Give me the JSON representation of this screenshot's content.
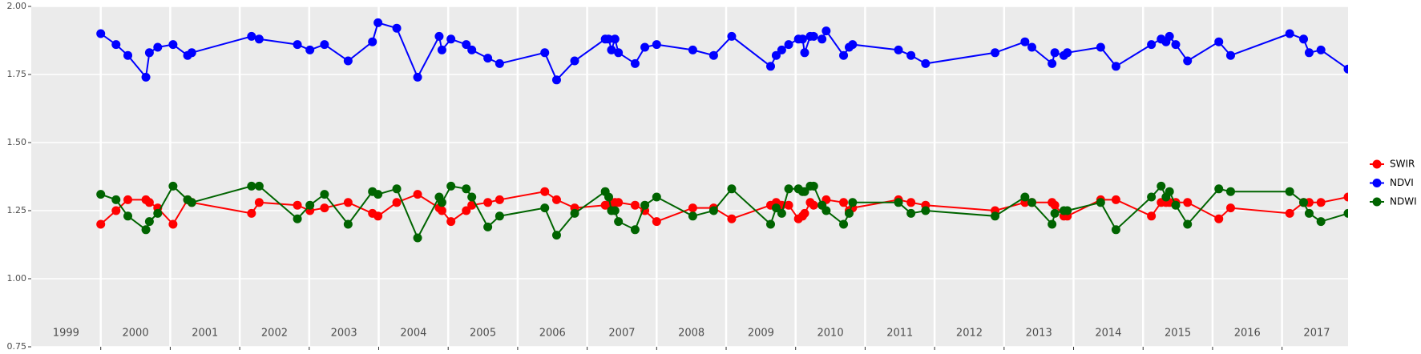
{
  "chart_data": {
    "type": "line",
    "x": [
      2000.0,
      2000.22,
      2000.39,
      2000.65,
      2000.7,
      2000.82,
      2001.04,
      2001.25,
      2001.31,
      2002.17,
      2002.28,
      2002.83,
      2003.01,
      2003.22,
      2003.56,
      2003.91,
      2003.99,
      2004.26,
      2004.56,
      2004.87,
      2004.91,
      2005.04,
      2005.26,
      2005.34,
      2005.57,
      2005.74,
      2006.39,
      2006.56,
      2006.82,
      2007.26,
      2007.31,
      2007.35,
      2007.4,
      2007.45,
      2007.69,
      2007.83,
      2008.0,
      2008.52,
      2008.82,
      2009.08,
      2009.64,
      2009.72,
      2009.8,
      2009.9,
      2010.04,
      2010.1,
      2010.13,
      2010.21,
      2010.26,
      2010.38,
      2010.44,
      2010.69,
      2010.77,
      2010.82,
      2011.48,
      2011.66,
      2011.87,
      2012.87,
      2013.3,
      2013.4,
      2013.69,
      2013.73,
      2013.86,
      2013.91,
      2014.39,
      2014.61,
      2015.12,
      2015.26,
      2015.33,
      2015.38,
      2015.47,
      2015.64,
      2016.09,
      2016.26,
      2017.11,
      2017.31,
      2017.39,
      2017.56,
      2017.95
    ],
    "series": [
      {
        "name": "SWIR",
        "color": "#ff0000",
        "values": [
          1.2,
          1.25,
          1.29,
          1.29,
          1.28,
          1.26,
          1.2,
          1.29,
          1.28,
          1.24,
          1.28,
          1.27,
          1.25,
          1.26,
          1.28,
          1.24,
          1.23,
          1.28,
          1.31,
          1.26,
          1.25,
          1.21,
          1.25,
          1.27,
          1.28,
          1.29,
          1.32,
          1.29,
          1.26,
          1.27,
          1.27,
          1.28,
          1.28,
          1.28,
          1.27,
          1.25,
          1.21,
          1.26,
          1.26,
          1.22,
          1.27,
          1.28,
          1.27,
          1.27,
          1.22,
          1.23,
          1.24,
          1.28,
          1.27,
          1.27,
          1.29,
          1.28,
          1.25,
          1.26,
          1.29,
          1.28,
          1.27,
          1.25,
          1.28,
          1.28,
          1.28,
          1.27,
          1.23,
          1.23,
          1.29,
          1.29,
          1.23,
          1.28,
          1.28,
          1.28,
          1.28,
          1.28,
          1.22,
          1.26,
          1.24,
          1.28,
          1.28,
          1.28,
          1.3
        ]
      },
      {
        "name": "NDVI",
        "color": "#0000ff",
        "values": [
          1.9,
          1.86,
          1.82,
          1.74,
          1.83,
          1.85,
          1.86,
          1.82,
          1.83,
          1.89,
          1.88,
          1.86,
          1.84,
          1.86,
          1.8,
          1.87,
          1.94,
          1.92,
          1.74,
          1.89,
          1.84,
          1.88,
          1.86,
          1.84,
          1.81,
          1.79,
          1.83,
          1.73,
          1.8,
          1.88,
          1.88,
          1.84,
          1.88,
          1.83,
          1.79,
          1.85,
          1.86,
          1.84,
          1.82,
          1.89,
          1.78,
          1.82,
          1.84,
          1.86,
          1.88,
          1.88,
          1.83,
          1.89,
          1.89,
          1.88,
          1.91,
          1.82,
          1.85,
          1.86,
          1.84,
          1.82,
          1.79,
          1.83,
          1.87,
          1.85,
          1.79,
          1.83,
          1.82,
          1.83,
          1.85,
          1.78,
          1.86,
          1.88,
          1.87,
          1.89,
          1.86,
          1.8,
          1.87,
          1.82,
          1.9,
          1.88,
          1.83,
          1.84,
          1.77
        ]
      },
      {
        "name": "NDWI",
        "color": "#006400",
        "values": [
          1.31,
          1.29,
          1.23,
          1.18,
          1.21,
          1.24,
          1.34,
          1.29,
          1.28,
          1.34,
          1.34,
          1.22,
          1.27,
          1.31,
          1.2,
          1.32,
          1.31,
          1.33,
          1.15,
          1.3,
          1.28,
          1.34,
          1.33,
          1.3,
          1.19,
          1.23,
          1.26,
          1.16,
          1.24,
          1.32,
          1.3,
          1.25,
          1.25,
          1.21,
          1.18,
          1.27,
          1.3,
          1.23,
          1.25,
          1.33,
          1.2,
          1.26,
          1.24,
          1.33,
          1.33,
          1.32,
          1.32,
          1.34,
          1.34,
          1.27,
          1.25,
          1.2,
          1.24,
          1.28,
          1.28,
          1.24,
          1.25,
          1.23,
          1.3,
          1.28,
          1.2,
          1.24,
          1.25,
          1.25,
          1.28,
          1.18,
          1.3,
          1.34,
          1.3,
          1.32,
          1.27,
          1.2,
          1.33,
          1.32,
          1.32,
          1.28,
          1.24,
          1.21,
          1.24
        ]
      }
    ],
    "xlim": [
      1999,
      2017.95
    ],
    "xticks": [
      2000,
      2001,
      2002,
      2003,
      2004,
      2005,
      2006,
      2007,
      2008,
      2009,
      2010,
      2011,
      2012,
      2013,
      2014,
      2015,
      2016,
      2017
    ],
    "year_labels": [
      1999,
      2000,
      2001,
      2002,
      2003,
      2004,
      2005,
      2006,
      2007,
      2008,
      2009,
      2010,
      2011,
      2012,
      2013,
      2014,
      2015,
      2016,
      2017
    ],
    "ylim": [
      0.75,
      2.0
    ],
    "yticks": [
      {
        "value": 0.75,
        "label": "0.75"
      },
      {
        "value": 1.0,
        "label": "1.00"
      },
      {
        "value": 1.25,
        "label": "1.25"
      },
      {
        "value": 1.5,
        "label": "1.50"
      },
      {
        "value": 1.75,
        "label": "1.75"
      },
      {
        "value": 2.0,
        "label": "2.00"
      }
    ],
    "grid": true,
    "legend": "right"
  }
}
